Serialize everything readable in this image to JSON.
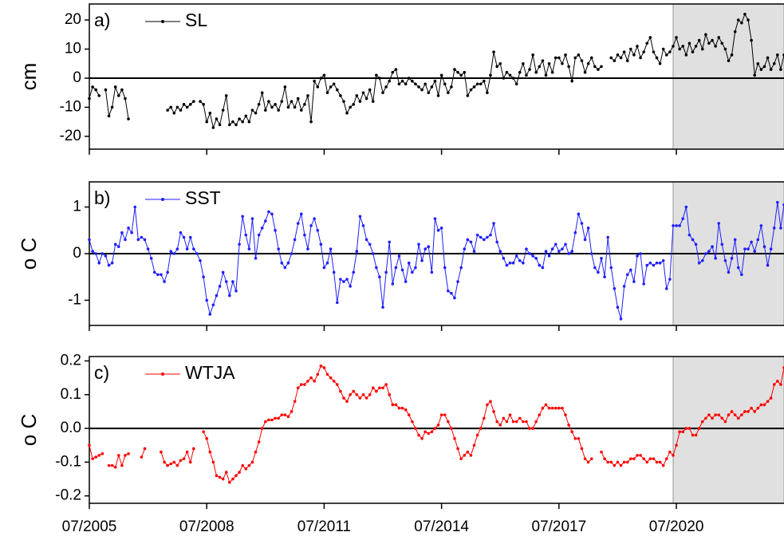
{
  "chart_data": {
    "type": "line",
    "x": [
      "07/2005",
      "08/2005",
      "09/2005",
      "10/2005",
      "11/2005",
      "12/2005",
      "01/2006",
      "02/2006",
      "03/2006",
      "04/2006",
      "05/2006",
      "06/2006",
      "07/2006",
      "08/2006",
      "09/2006",
      "10/2006",
      "11/2006",
      "12/2006",
      "01/2007",
      "02/2007",
      "03/2007",
      "04/2007",
      "05/2007",
      "06/2007",
      "07/2007",
      "08/2007",
      "09/2007",
      "10/2007",
      "11/2007",
      "12/2007",
      "01/2008",
      "02/2008",
      "03/2008",
      "04/2008",
      "05/2008",
      "06/2008",
      "07/2008",
      "08/2008",
      "09/2008",
      "10/2008",
      "11/2008",
      "12/2008",
      "01/2009",
      "02/2009",
      "03/2009",
      "04/2009",
      "05/2009",
      "06/2009",
      "07/2009",
      "08/2009",
      "09/2009",
      "10/2009",
      "11/2009",
      "12/2009",
      "01/2010",
      "02/2010",
      "03/2010",
      "04/2010",
      "05/2010",
      "06/2010",
      "07/2010",
      "08/2010",
      "09/2010",
      "10/2010",
      "11/2010",
      "12/2010",
      "01/2011",
      "02/2011",
      "03/2011",
      "04/2011",
      "05/2011",
      "06/2011",
      "07/2011",
      "08/2011",
      "09/2011",
      "10/2011",
      "11/2011",
      "12/2011",
      "01/2012",
      "02/2012",
      "03/2012",
      "04/2012",
      "05/2012",
      "06/2012",
      "07/2012",
      "08/2012",
      "09/2012",
      "10/2012",
      "11/2012",
      "12/2012",
      "01/2013",
      "02/2013",
      "03/2013",
      "04/2013",
      "05/2013",
      "06/2013",
      "07/2013",
      "08/2013",
      "09/2013",
      "10/2013",
      "11/2013",
      "12/2013",
      "01/2014",
      "02/2014",
      "03/2014",
      "04/2014",
      "05/2014",
      "06/2014",
      "07/2014",
      "08/2014",
      "09/2014",
      "10/2014",
      "11/2014",
      "12/2014",
      "01/2015",
      "02/2015",
      "03/2015",
      "04/2015",
      "05/2015",
      "06/2015",
      "07/2015",
      "08/2015",
      "09/2015",
      "10/2015",
      "11/2015",
      "12/2015",
      "01/2016",
      "02/2016",
      "03/2016",
      "04/2016",
      "05/2016",
      "06/2016",
      "07/2016",
      "08/2016",
      "09/2016",
      "10/2016",
      "11/2016",
      "12/2016",
      "01/2017",
      "02/2017",
      "03/2017",
      "04/2017",
      "05/2017",
      "06/2017",
      "07/2017",
      "08/2017",
      "09/2017",
      "10/2017",
      "11/2017",
      "12/2017",
      "01/2018",
      "02/2018",
      "03/2018",
      "04/2018",
      "05/2018",
      "06/2018",
      "07/2018",
      "08/2018",
      "09/2018",
      "10/2018",
      "11/2018",
      "12/2018",
      "01/2019",
      "02/2019",
      "03/2019",
      "04/2019",
      "05/2019",
      "06/2019",
      "07/2019",
      "08/2019",
      "09/2019",
      "10/2019",
      "11/2019",
      "12/2019",
      "01/2020",
      "02/2020",
      "03/2020",
      "04/2020",
      "05/2020",
      "06/2020",
      "07/2020",
      "08/2020",
      "09/2020",
      "10/2020",
      "11/2020",
      "12/2020",
      "01/2021",
      "02/2021",
      "03/2021",
      "04/2021",
      "05/2021",
      "06/2021",
      "07/2021",
      "08/2021",
      "09/2021",
      "10/2021",
      "11/2021",
      "12/2021",
      "01/2022",
      "02/2022",
      "03/2022",
      "04/2022",
      "05/2022",
      "06/2022",
      "07/2022",
      "08/2022",
      "09/2022",
      "10/2022",
      "11/2022",
      "12/2022",
      "01/2023",
      "02/2023",
      "03/2023",
      "04/2023"
    ],
    "xlim": [
      "07/2005",
      "04/2023"
    ],
    "xticks": [
      "07/2005",
      "07/2008",
      "07/2011",
      "07/2014",
      "07/2017",
      "07/2020"
    ],
    "shaded_from": "06/2020",
    "shade_color": "#e0e0e0",
    "zero_line": true,
    "panels": [
      {
        "label": "a)",
        "ylabel": "cm",
        "ylim": [
          -24.4,
          25.5
        ],
        "yticks": [
          -20,
          -10,
          0,
          10,
          20
        ],
        "series": [
          {
            "name": "SL",
            "color": "#000000",
            "values": [
              -7,
              -3,
              -4,
              -6,
              null,
              -4,
              -13,
              -10,
              -3,
              -6,
              -4,
              -7,
              -14,
              null,
              null,
              null,
              null,
              null,
              null,
              null,
              null,
              null,
              null,
              null,
              -11,
              -10,
              -12,
              -10,
              -11,
              -9,
              -10,
              -9,
              -8,
              null,
              -8,
              -9,
              -15,
              -12,
              -17,
              -14,
              -16,
              -11,
              -6,
              -16,
              -15,
              -16,
              -14,
              -15,
              -13,
              -15,
              -11,
              -12,
              -9,
              -5,
              -11,
              -8,
              -10,
              -9,
              -11,
              -8,
              -3,
              -10,
              -8,
              -10,
              -7,
              -11,
              -9,
              -6,
              -15,
              -1,
              -3,
              0,
              1,
              -5,
              -3,
              -2,
              -4,
              -6,
              -8,
              -12,
              -10,
              -9,
              -6,
              -8,
              -5,
              -7,
              -4,
              -8,
              1,
              0,
              -5,
              -3,
              -1,
              2,
              3,
              -2,
              -1,
              -2,
              0,
              -1,
              -2,
              -3,
              -4,
              -2,
              -5,
              -3,
              -1,
              -6,
              1,
              -2,
              -5,
              -3,
              3,
              2,
              1,
              2,
              -6,
              -4,
              -3,
              -2,
              -2,
              -1,
              -5,
              1,
              9,
              4,
              5,
              0,
              2,
              1,
              0,
              -2,
              2,
              5,
              1,
              3,
              8,
              2,
              4,
              6,
              1,
              5,
              2,
              7,
              7,
              5,
              8,
              4,
              -1,
              7,
              8,
              6,
              2,
              5,
              7,
              4,
              3,
              4,
              null,
              null,
              7,
              6,
              8,
              7,
              9,
              6,
              10,
              8,
              11,
              7,
              9,
              12,
              14,
              9,
              7,
              5,
              10,
              8,
              9,
              11,
              14,
              10,
              11,
              8,
              12,
              9,
              11,
              13,
              10,
              15,
              12,
              13,
              11,
              14,
              12,
              10,
              6,
              8,
              16,
              20,
              19,
              22,
              20,
              13,
              1,
              5,
              3,
              4,
              7,
              3,
              5,
              8,
              3,
              8
            ]
          }
        ]
      },
      {
        "label": "b)",
        "ylabel": "o C",
        "ylim": [
          -1.54,
          1.54
        ],
        "yticks": [
          -1,
          0,
          1
        ],
        "series": [
          {
            "name": "SST",
            "color": "#1f1fff",
            "values": [
              0.3,
              0.05,
              0,
              -0.2,
              0,
              -0.05,
              -0.25,
              -0.2,
              0.2,
              0.15,
              0.45,
              0.3,
              0.55,
              0.45,
              1.0,
              0.3,
              0.35,
              0.3,
              0.1,
              -0.1,
              -0.4,
              -0.45,
              -0.45,
              -0.6,
              -0.4,
              0.05,
              0,
              0.1,
              0.45,
              0.35,
              0.1,
              0.35,
              0.1,
              0,
              -0.15,
              -0.5,
              -1.0,
              -1.3,
              -1.1,
              -0.9,
              -0.7,
              -0.4,
              -0.6,
              -0.9,
              -0.6,
              -0.8,
              0.2,
              0.8,
              0.4,
              0.1,
              0.75,
              -0.1,
              0.4,
              0.55,
              0.7,
              0.9,
              0.85,
              0.5,
              0.1,
              -0.2,
              -0.3,
              -0.2,
              0,
              0.3,
              0.65,
              0.85,
              0.4,
              0.1,
              0.6,
              0.75,
              0.5,
              0.2,
              -0.3,
              -0.2,
              0.1,
              -0.4,
              -1.05,
              -0.55,
              -0.6,
              -0.55,
              -0.7,
              -0.4,
              0.05,
              0.8,
              0.6,
              0.3,
              0.2,
              0,
              -0.3,
              -0.5,
              -1.15,
              -0.4,
              0.25,
              -0.65,
              -0.3,
              -0.05,
              -0.35,
              -0.6,
              -0.2,
              -0.4,
              -0.3,
              0.2,
              -0.15,
              0.1,
              0.15,
              -0.4,
              0.75,
              0.5,
              0.55,
              -0.3,
              -0.8,
              -0.85,
              -0.95,
              -0.6,
              -0.3,
              0.1,
              0.3,
              0.25,
              0.05,
              0.4,
              0.35,
              0.3,
              0.35,
              0.4,
              0.65,
              0.25,
              0.05,
              -0.1,
              -0.25,
              -0.2,
              -0.2,
              -0.05,
              -0.15,
              -0.2,
              0.1,
              0,
              -0.05,
              -0.1,
              -0.25,
              -0.3,
              0.05,
              -0.05,
              0.1,
              0.2,
              0.05,
              0.1,
              0.2,
              0,
              0.05,
              0.45,
              0.85,
              0.65,
              0.3,
              0.55,
              0,
              -0.3,
              -0.4,
              -0.1,
              -0.5,
              0.35,
              -0.3,
              -0.75,
              -1.15,
              -1.4,
              -0.7,
              -0.45,
              -0.35,
              -0.6,
              -0.05,
              0,
              -0.65,
              -0.25,
              -0.2,
              -0.25,
              -0.2,
              -0.2,
              -0.15,
              -0.75,
              -0.55,
              0.6,
              0.6,
              0.6,
              0.75,
              1.0,
              0.4,
              0.3,
              0.2,
              -0.2,
              -0.15,
              0,
              0.05,
              0.15,
              -0.1,
              0.65,
              0.2,
              -0.15,
              -0.4,
              -0.1,
              0.3,
              -0.3,
              -0.45,
              0.1,
              0.1,
              0.25,
              0.05,
              0.3,
              0.6,
              0.15,
              -0.25,
              0.1,
              0.55,
              1.1,
              0.55,
              1.05
            ]
          }
        ]
      },
      {
        "label": "c)",
        "ylabel": "o C",
        "ylim": [
          -0.222,
          0.213
        ],
        "yticks": [
          -0.2,
          -0.1,
          {
            "value": 0,
            "label": "0.0"
          },
          0.1,
          0.2
        ],
        "series": [
          {
            "name": "WTJA",
            "color": "#ff0000",
            "values": [
              -0.05,
              -0.09,
              -0.085,
              -0.08,
              -0.075,
              null,
              -0.11,
              -0.11,
              -0.115,
              -0.08,
              -0.11,
              -0.08,
              -0.075,
              null,
              null,
              null,
              -0.085,
              -0.06,
              null,
              null,
              null,
              null,
              -0.07,
              -0.1,
              -0.11,
              -0.105,
              -0.1,
              -0.11,
              -0.095,
              -0.09,
              -0.07,
              -0.1,
              -0.06,
              null,
              null,
              -0.01,
              -0.03,
              -0.07,
              -0.1,
              -0.14,
              -0.145,
              -0.15,
              -0.13,
              -0.16,
              -0.15,
              -0.14,
              -0.13,
              -0.11,
              -0.12,
              -0.11,
              -0.1,
              -0.07,
              -0.04,
              0,
              0.02,
              0.025,
              0.025,
              0.03,
              0.03,
              0.04,
              0.04,
              0.035,
              0.05,
              0.08,
              0.12,
              0.13,
              0.13,
              0.14,
              0.15,
              0.14,
              0.16,
              0.185,
              0.18,
              0.16,
              0.15,
              0.14,
              0.13,
              0.11,
              0.09,
              0.08,
              0.1,
              0.11,
              0.1,
              0.09,
              0.1,
              0.09,
              0.1,
              0.12,
              0.11,
              0.12,
              0.12,
              0.13,
              0.1,
              0.07,
              0.07,
              0.06,
              0.06,
              0.055,
              0.04,
              0.02,
              0,
              -0.02,
              -0.03,
              -0.01,
              -0.015,
              -0.01,
              0,
              0.01,
              0.04,
              0.04,
              0.02,
              0,
              -0.03,
              -0.06,
              -0.09,
              -0.08,
              -0.07,
              -0.08,
              -0.05,
              -0.02,
              0,
              0.03,
              0.07,
              0.08,
              0.05,
              0.02,
              0.01,
              0.03,
              0.02,
              0.04,
              0.02,
              0.02,
              0.03,
              0.02,
              0.02,
              0,
              0,
              0.02,
              0.04,
              0.06,
              0.07,
              0.06,
              0.06,
              0.06,
              0.06,
              0.06,
              0.04,
              0.01,
              -0.01,
              -0.03,
              -0.03,
              -0.06,
              -0.09,
              -0.1,
              -0.09,
              null,
              null,
              -0.07,
              -0.09,
              -0.1,
              -0.1,
              -0.11,
              -0.1,
              -0.11,
              -0.1,
              -0.1,
              -0.09,
              -0.09,
              -0.08,
              -0.08,
              -0.09,
              -0.1,
              -0.09,
              -0.09,
              -0.1,
              -0.1,
              -0.11,
              -0.09,
              -0.07,
              -0.08,
              -0.05,
              -0.01,
              -0.01,
              0,
              0,
              -0.02,
              -0.02,
              0,
              0.02,
              0.03,
              0.04,
              0.03,
              0.04,
              0.04,
              0.03,
              0.02,
              0.04,
              0.05,
              0.04,
              0.03,
              0.04,
              0.05,
              0.05,
              0.06,
              0.05,
              0.06,
              0.07,
              0.07,
              0.08,
              0.09,
              0.13,
              0.14,
              0.13,
              0.18
            ]
          }
        ]
      }
    ]
  }
}
